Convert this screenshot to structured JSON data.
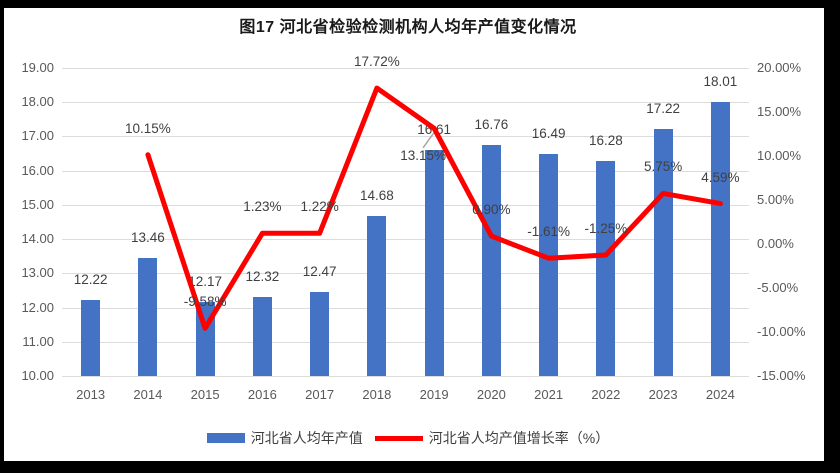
{
  "title": "图17 河北省检验检测机构人均年产值变化情况",
  "legend": {
    "bar_label": "河北省人均年产值",
    "line_label": "河北省人均产值增长率（%）"
  },
  "colors": {
    "bar": "#4472C4",
    "line": "#FF0000",
    "grid": "#DCDCDC",
    "axis_text": "#595959",
    "label_text": "#404040",
    "leader": "#A6A6A6",
    "background": "#FFFFFF",
    "border": "#000000"
  },
  "chart_data": {
    "type": "combo",
    "title": "图17 河北省检验检测机构人均年产值变化情况",
    "categories": [
      "2013",
      "2014",
      "2015",
      "2016",
      "2017",
      "2018",
      "2019",
      "2020",
      "2021",
      "2022",
      "2023",
      "2024"
    ],
    "series": [
      {
        "name": "河北省人均年产值",
        "chart_type": "bar",
        "axis": "left",
        "values": [
          12.22,
          13.46,
          12.17,
          12.32,
          12.47,
          14.68,
          16.61,
          16.76,
          16.49,
          16.28,
          17.22,
          18.01
        ],
        "labels": [
          "12.22",
          "13.46",
          "12.17",
          "12.32",
          "12.47",
          "14.68",
          "16.61",
          "16.76",
          "16.49",
          "16.28",
          "17.22",
          "18.01"
        ]
      },
      {
        "name": "河北省人均产值增长率（%）",
        "chart_type": "line",
        "axis": "right",
        "values": [
          null,
          10.15,
          -9.58,
          1.23,
          1.22,
          17.72,
          13.15,
          0.9,
          -1.61,
          -1.25,
          5.75,
          4.59
        ],
        "labels": [
          null,
          "10.15%",
          "-9.58%",
          "1.23%",
          "1.22%",
          "17.72%",
          "13.15%",
          "0.90%",
          "-1.61%",
          "-1.25%",
          "5.75%",
          "4.59%"
        ]
      }
    ],
    "left_axis": {
      "min": 10,
      "max": 19,
      "tick_values": [
        19,
        18,
        17,
        16,
        15,
        14,
        13,
        12,
        11,
        10
      ],
      "tick_labels": [
        "19.00",
        "18.00",
        "17.00",
        "16.00",
        "15.00",
        "14.00",
        "13.00",
        "12.00",
        "11.00",
        "10.00"
      ]
    },
    "right_axis": {
      "min": -15,
      "max": 20,
      "tick_values": [
        20,
        15,
        10,
        5,
        0,
        -5,
        -10,
        -15
      ],
      "tick_labels": [
        "20.00%",
        "15.00%",
        "10.00%",
        "5.00%",
        "0.00%",
        "-5.00%",
        "-10.00%",
        "-15.00%"
      ]
    },
    "grid": true,
    "legend_position": "bottom",
    "label_overrides": {
      "line": {
        "6": {
          "dx": -11,
          "dy": 28
        }
      },
      "bar_leader_index": 6
    }
  }
}
